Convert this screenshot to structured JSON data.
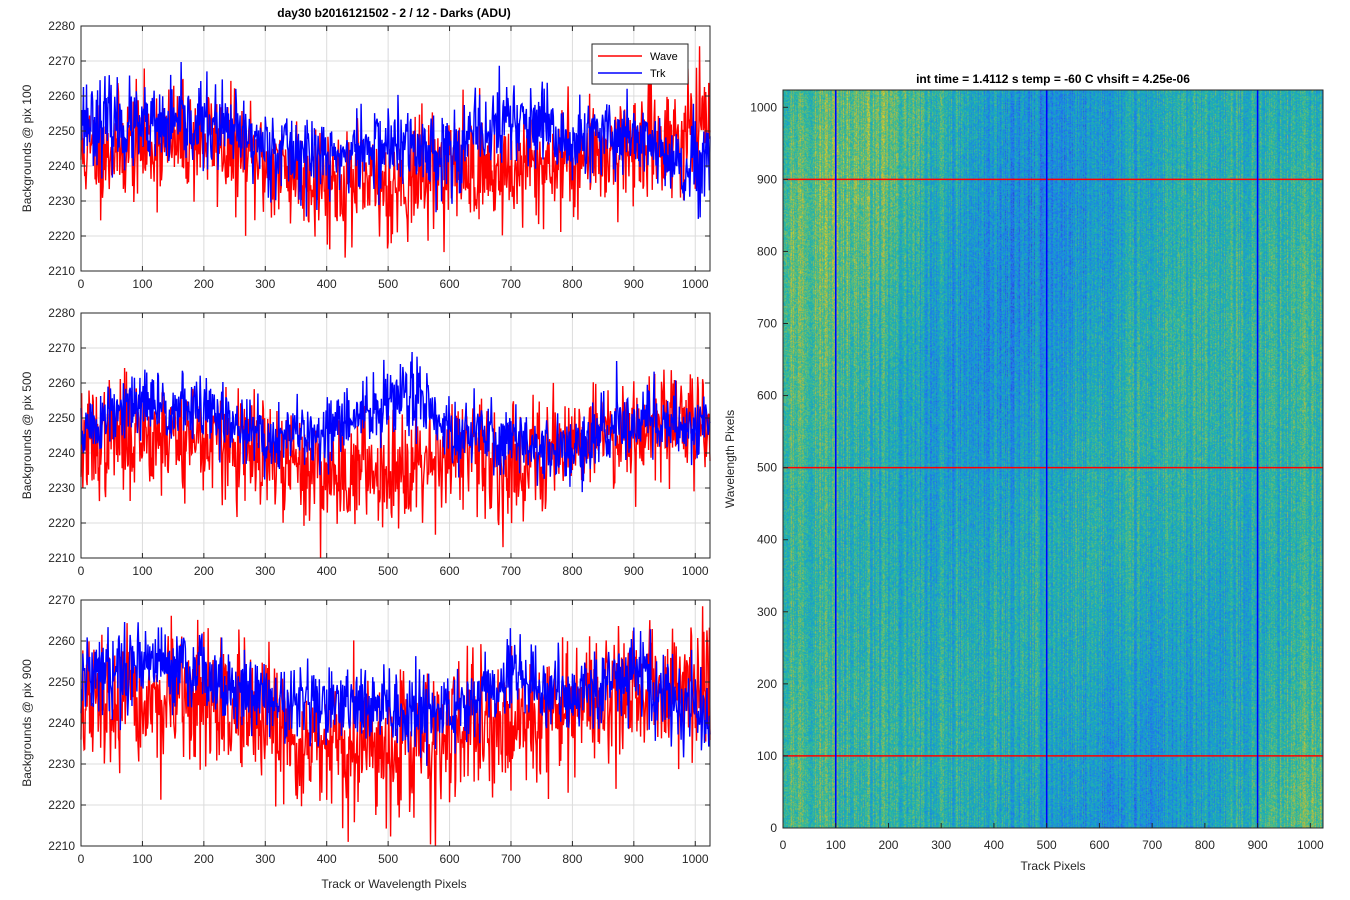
{
  "figure": {
    "main_title": "day30 b2016121502 - 2 / 12 - Darks (ADU)",
    "shared_xlabel": "Track or Wavelength Pixels"
  },
  "chart_data": [
    {
      "type": "line",
      "ylabel": "Backgrounds @ pix 100",
      "xlim": [
        0,
        1024
      ],
      "ylim": [
        2210,
        2280
      ],
      "xticks": [
        0,
        100,
        200,
        300,
        400,
        500,
        600,
        700,
        800,
        900,
        1000
      ],
      "yticks": [
        2210,
        2220,
        2230,
        2240,
        2250,
        2260,
        2270,
        2280
      ],
      "grid": true,
      "legend": {
        "placement": "top-right",
        "entries": [
          "Wave",
          "Trk"
        ]
      },
      "series": [
        {
          "name": "Wave",
          "color": "#ff0000",
          "mean": 2243,
          "noise": 8,
          "seed": 11,
          "profile": [
            [
              0,
              2244
            ],
            [
              100,
              2246
            ],
            [
              200,
              2248
            ],
            [
              300,
              2240
            ],
            [
              400,
              2236
            ],
            [
              500,
              2234
            ],
            [
              600,
              2240
            ],
            [
              700,
              2238
            ],
            [
              800,
              2242
            ],
            [
              900,
              2246
            ],
            [
              1024,
              2250
            ]
          ]
        },
        {
          "name": "Trk",
          "color": "#0000ff",
          "mean": 2248,
          "noise": 6,
          "seed": 23,
          "profile": [
            [
              0,
              2254
            ],
            [
              100,
              2250
            ],
            [
              200,
              2252
            ],
            [
              300,
              2246
            ],
            [
              400,
              2242
            ],
            [
              500,
              2246
            ],
            [
              600,
              2244
            ],
            [
              700,
              2254
            ],
            [
              800,
              2246
            ],
            [
              900,
              2250
            ],
            [
              980,
              2238
            ],
            [
              1024,
              2240
            ]
          ]
        }
      ]
    },
    {
      "type": "line",
      "ylabel": "Backgrounds @ pix 500",
      "xlim": [
        0,
        1024
      ],
      "ylim": [
        2210,
        2280
      ],
      "xticks": [
        0,
        100,
        200,
        300,
        400,
        500,
        600,
        700,
        800,
        900,
        1000
      ],
      "yticks": [
        2210,
        2220,
        2230,
        2240,
        2250,
        2260,
        2270,
        2280
      ],
      "grid": true,
      "series": [
        {
          "name": "Wave",
          "color": "#ff0000",
          "mean": 2241,
          "noise": 8,
          "seed": 37,
          "profile": [
            [
              0,
              2242
            ],
            [
              100,
              2246
            ],
            [
              200,
              2244
            ],
            [
              300,
              2238
            ],
            [
              400,
              2234
            ],
            [
              500,
              2236
            ],
            [
              600,
              2240
            ],
            [
              700,
              2236
            ],
            [
              800,
              2244
            ],
            [
              900,
              2248
            ],
            [
              1024,
              2250
            ]
          ]
        },
        {
          "name": "Trk",
          "color": "#0000ff",
          "mean": 2248,
          "noise": 5,
          "seed": 51,
          "profile": [
            [
              0,
              2246
            ],
            [
              100,
              2254
            ],
            [
              200,
              2252
            ],
            [
              300,
              2244
            ],
            [
              400,
              2246
            ],
            [
              550,
              2258
            ],
            [
              600,
              2246
            ],
            [
              700,
              2244
            ],
            [
              800,
              2240
            ],
            [
              900,
              2250
            ],
            [
              1024,
              2248
            ]
          ]
        }
      ]
    },
    {
      "type": "line",
      "ylabel": "Backgrounds @ pix 900",
      "xlim": [
        0,
        1024
      ],
      "ylim": [
        2210,
        2270
      ],
      "xticks": [
        0,
        100,
        200,
        300,
        400,
        500,
        600,
        700,
        800,
        900,
        1000
      ],
      "yticks": [
        2210,
        2220,
        2230,
        2240,
        2250,
        2260,
        2270
      ],
      "grid": true,
      "series": [
        {
          "name": "Wave",
          "color": "#ff0000",
          "mean": 2240,
          "noise": 8,
          "seed": 67,
          "profile": [
            [
              0,
              2244
            ],
            [
              100,
              2244
            ],
            [
              200,
              2246
            ],
            [
              300,
              2238
            ],
            [
              400,
              2232
            ],
            [
              500,
              2234
            ],
            [
              600,
              2236
            ],
            [
              700,
              2240
            ],
            [
              800,
              2244
            ],
            [
              900,
              2248
            ],
            [
              1024,
              2250
            ]
          ]
        },
        {
          "name": "Trk",
          "color": "#0000ff",
          "mean": 2248,
          "noise": 5,
          "seed": 79,
          "profile": [
            [
              0,
              2250
            ],
            [
              100,
              2256
            ],
            [
              200,
              2252
            ],
            [
              300,
              2246
            ],
            [
              400,
              2244
            ],
            [
              500,
              2244
            ],
            [
              600,
              2242
            ],
            [
              700,
              2252
            ],
            [
              800,
              2246
            ],
            [
              900,
              2252
            ],
            [
              1024,
              2240
            ]
          ]
        }
      ]
    },
    {
      "type": "heatmap",
      "title": "int time = 1.4112 s    temp = -60 C    vhsift = 4.25e-06",
      "xlabel": "Track Pixels",
      "ylabel": "Wavelength Pixels",
      "xlim": [
        0,
        1024
      ],
      "ylim": [
        0,
        1024
      ],
      "xticks": [
        0,
        100,
        200,
        300,
        400,
        500,
        600,
        700,
        800,
        900,
        1000
      ],
      "yticks": [
        0,
        100,
        200,
        300,
        400,
        500,
        600,
        700,
        800,
        900,
        1000
      ],
      "colormap": "parula",
      "vertical_markers": {
        "x": [
          100,
          500,
          900
        ],
        "color": "#0000ff"
      },
      "horizontal_markers": {
        "y": [
          100,
          500,
          900
        ],
        "color": "#ff0000"
      }
    }
  ]
}
